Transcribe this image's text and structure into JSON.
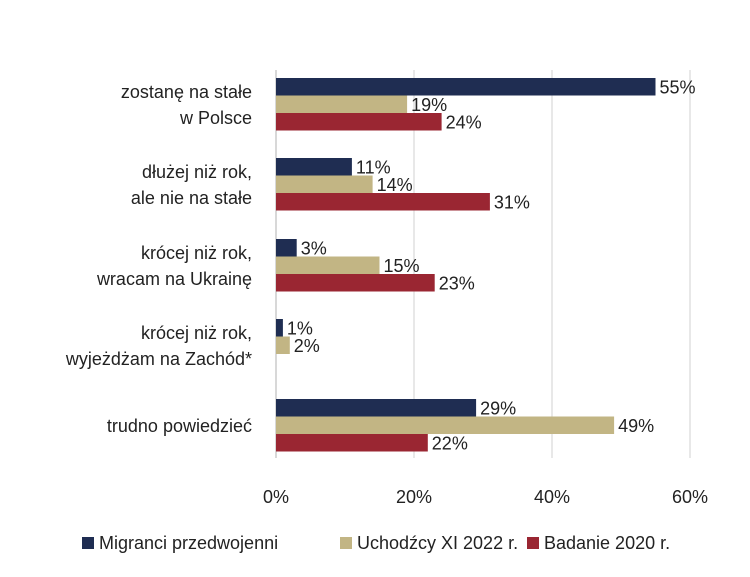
{
  "chart_data": {
    "type": "bar",
    "orientation": "horizontal",
    "title": "",
    "xlabel": "",
    "ylabel": "",
    "xlim": [
      0,
      60
    ],
    "x_ticks": [
      0,
      20,
      40,
      60
    ],
    "x_tick_labels": [
      "0%",
      "20%",
      "40%",
      "60%"
    ],
    "grid": true,
    "legend_position": "bottom",
    "categories": [
      [
        "zostanę na stałe",
        "w Polsce"
      ],
      [
        "dłużej niż rok,",
        "ale nie na stałe"
      ],
      [
        "krócej niż rok,",
        "wracam na Ukrainę"
      ],
      [
        "krócej niż rok,",
        "wyjeżdżam na Zachód*"
      ],
      [
        "trudno powiedzieć"
      ]
    ],
    "series": [
      {
        "name": "Migranci przedwojenni",
        "color": "#1f2d52",
        "values": [
          55,
          11,
          3,
          1,
          29
        ],
        "labels": [
          "55%",
          "11%",
          "3%",
          "1%",
          "29%"
        ]
      },
      {
        "name": "Uchodźcy XI 2022 r.",
        "color": "#c2b584",
        "values": [
          19,
          14,
          15,
          2,
          49
        ],
        "labels": [
          "19%",
          "14%",
          "15%",
          "2%",
          "49%"
        ]
      },
      {
        "name": "Badanie 2020 r.",
        "color": "#9a2632",
        "values": [
          24,
          31,
          23,
          null,
          22
        ],
        "labels": [
          "24%",
          "31%",
          "23%",
          "",
          "22%"
        ]
      }
    ]
  }
}
